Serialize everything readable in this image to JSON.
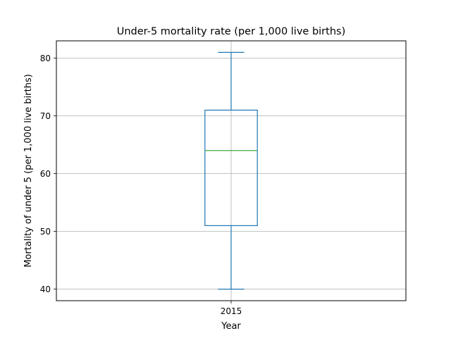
{
  "chart_data": {
    "type": "box",
    "title": "Under-5 mortality rate (per 1,000 live births)",
    "xlabel": "Year",
    "ylabel": "Mortality of under 5 (per 1,000 live births)",
    "categories": [
      "2015"
    ],
    "boxes": [
      {
        "category": "2015",
        "whisker_low": 40,
        "q1": 51,
        "median": 64,
        "q3": 71,
        "whisker_high": 81
      }
    ],
    "ylim": [
      38,
      83
    ],
    "yticks": [
      40,
      50,
      60,
      70,
      80
    ],
    "grid": true,
    "colors": {
      "box": "#1f77b4",
      "median": "#2ca02c",
      "grid": "#b0b0b0"
    }
  }
}
